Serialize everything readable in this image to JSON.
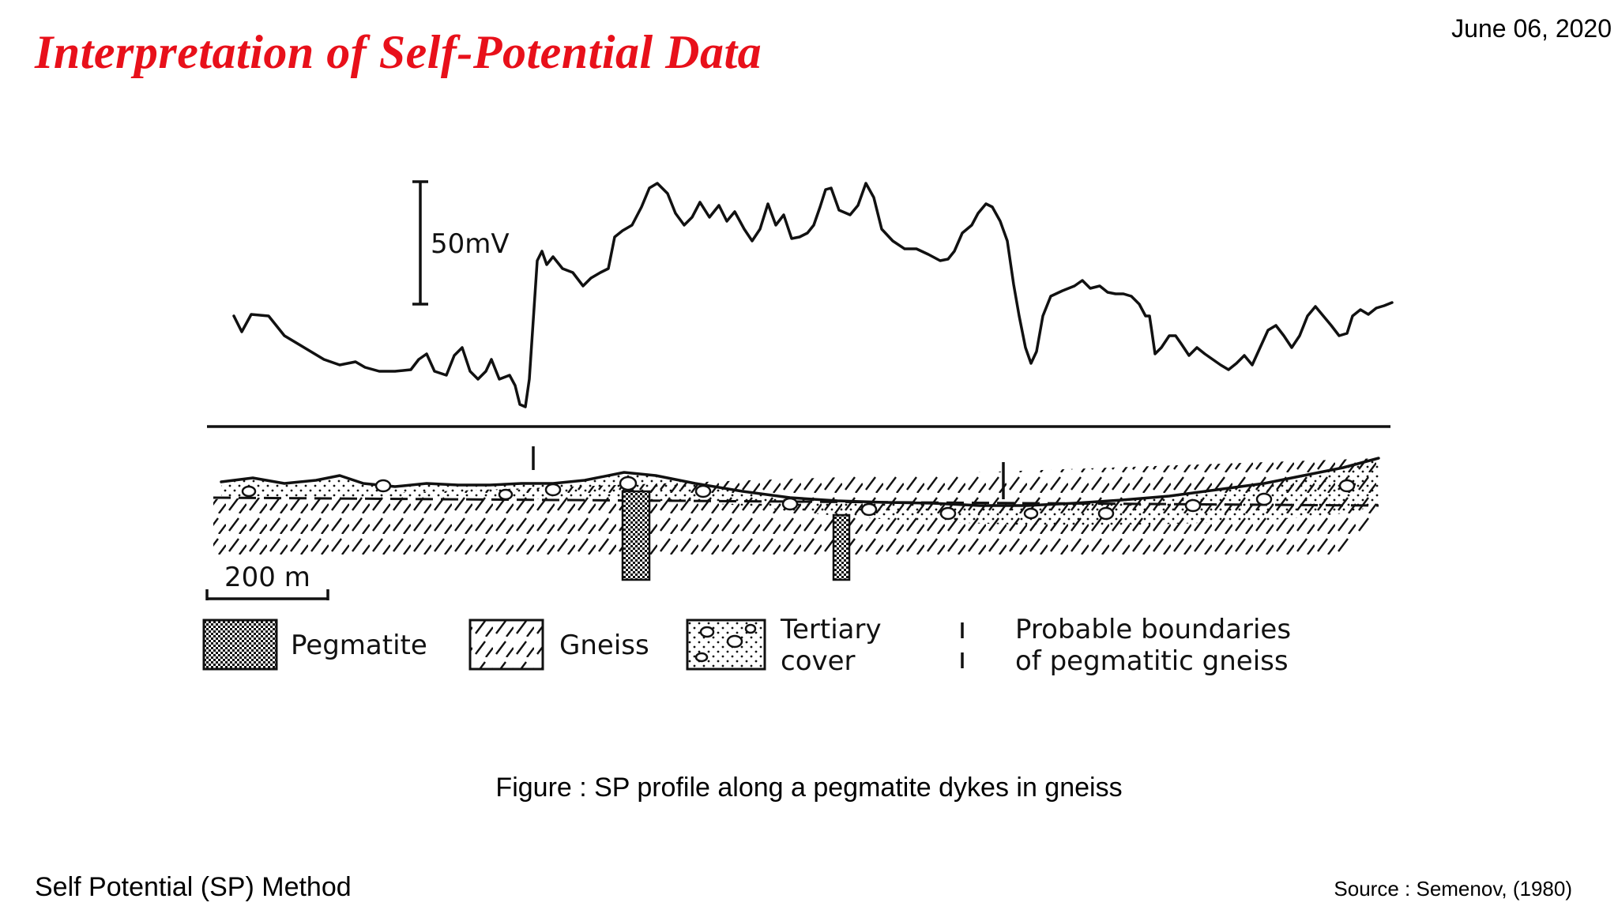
{
  "slide": {
    "title": "Interpretation of Self-Potential Data",
    "date": "June 06, 2020",
    "caption": "Figure : SP profile along a pegmatite dykes in gneiss",
    "footer_left": "Self Potential (SP) Method",
    "footer_right": "Source : Semenov, (1980)"
  },
  "figure": {
    "scale_bar_mv": "50mV",
    "scale_bar_distance": "200 m",
    "legend": {
      "pegmatite": "Pegmatite",
      "gneiss": "Gneiss",
      "tertiary_line1": "Tertiary",
      "tertiary_line2": "cover",
      "boundary_line1": "Probable boundaries",
      "boundary_line2": "of pegmatitic gneiss"
    }
  }
}
